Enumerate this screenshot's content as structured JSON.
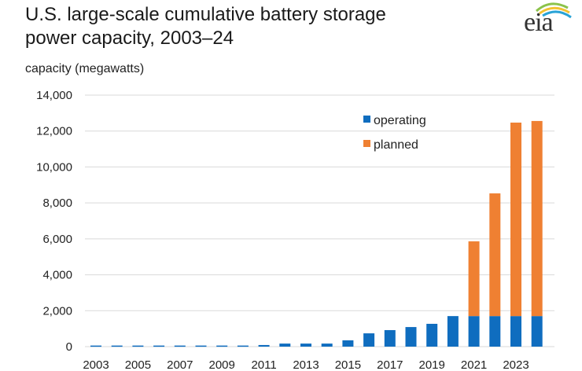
{
  "header": {
    "title_line1": "U.S. large-scale cumulative battery storage",
    "title_line2": "power capacity, 2003–24",
    "unit_label": "capacity (megawatts)",
    "logo_text": "eia"
  },
  "colors": {
    "operating": "#0f6dbf",
    "planned": "#ef8032",
    "grid": "#d9d9d9",
    "text": "#222222"
  },
  "chart_data": {
    "type": "bar",
    "stacked": true,
    "title": "U.S. large-scale cumulative battery storage power capacity, 2003–24",
    "ylabel": "capacity (megawatts)",
    "xlabel": "",
    "ylim": [
      0,
      14000
    ],
    "yticks": [
      0,
      2000,
      4000,
      6000,
      8000,
      10000,
      12000,
      14000
    ],
    "ytick_labels": [
      "0",
      "2,000",
      "4,000",
      "6,000",
      "8,000",
      "10,000",
      "12,000",
      "14,000"
    ],
    "grid": true,
    "legend_position": "top-right",
    "categories": [
      "2003",
      "2004",
      "2005",
      "2006",
      "2007",
      "2008",
      "2009",
      "2010",
      "2011",
      "2012",
      "2013",
      "2014",
      "2015",
      "2016",
      "2017",
      "2018",
      "2019",
      "2020",
      "2021",
      "2022",
      "2023",
      "2024"
    ],
    "xtick_labels": [
      "2003",
      "2005",
      "2007",
      "2009",
      "2011",
      "2013",
      "2015",
      "2017",
      "2019",
      "2021",
      "2023"
    ],
    "series": [
      {
        "name": "operating",
        "values": [
          60,
          60,
          60,
          60,
          60,
          60,
          60,
          60,
          90,
          170,
          170,
          170,
          350,
          740,
          920,
          1090,
          1270,
          1700,
          1700,
          1700,
          1700,
          1700
        ]
      },
      {
        "name": "planned",
        "values": [
          0,
          0,
          0,
          0,
          0,
          0,
          0,
          0,
          0,
          0,
          0,
          0,
          0,
          0,
          0,
          0,
          0,
          0,
          4160,
          6830,
          10770,
          10860
        ]
      }
    ]
  }
}
